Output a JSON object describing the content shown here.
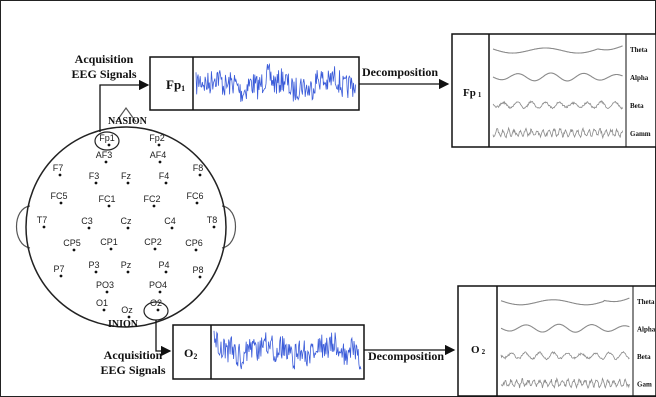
{
  "head": {
    "nasion": "NASION",
    "inion": "INION",
    "electrodes": [
      {
        "id": "fp1",
        "label": "Fp1"
      },
      {
        "id": "fp2",
        "label": "Fp2"
      },
      {
        "id": "af3",
        "label": "AF3"
      },
      {
        "id": "af4",
        "label": "AF4"
      },
      {
        "id": "f7",
        "label": "F7"
      },
      {
        "id": "f3",
        "label": "F3"
      },
      {
        "id": "fz",
        "label": "Fz"
      },
      {
        "id": "f4",
        "label": "F4"
      },
      {
        "id": "f8",
        "label": "F8"
      },
      {
        "id": "fc5",
        "label": "FC5"
      },
      {
        "id": "fc1",
        "label": "FC1"
      },
      {
        "id": "fc2",
        "label": "FC2"
      },
      {
        "id": "fc6",
        "label": "FC6"
      },
      {
        "id": "t7",
        "label": "T7"
      },
      {
        "id": "c3",
        "label": "C3"
      },
      {
        "id": "cz",
        "label": "Cz"
      },
      {
        "id": "c4",
        "label": "C4"
      },
      {
        "id": "t8",
        "label": "T8"
      },
      {
        "id": "cp5",
        "label": "CP5"
      },
      {
        "id": "cp1",
        "label": "CP1"
      },
      {
        "id": "cp2",
        "label": "CP2"
      },
      {
        "id": "cp6",
        "label": "CP6"
      },
      {
        "id": "p7",
        "label": "P7"
      },
      {
        "id": "p3",
        "label": "P3"
      },
      {
        "id": "pz",
        "label": "Pz"
      },
      {
        "id": "p4",
        "label": "P4"
      },
      {
        "id": "p8",
        "label": "P8"
      },
      {
        "id": "po3",
        "label": "PO3"
      },
      {
        "id": "po4",
        "label": "PO4"
      },
      {
        "id": "o1",
        "label": "O1"
      },
      {
        "id": "oz",
        "label": "Oz"
      },
      {
        "id": "o2",
        "label": "O2"
      }
    ]
  },
  "top": {
    "acquisition_line1": "Acquisition",
    "acquisition_line2": "EEG Signals",
    "signal_label": "Fp",
    "signal_sub": "1",
    "decomposition": "Decomposition",
    "result_label": "Fp",
    "result_sub": "1",
    "bands": [
      "Theta",
      "Alpha",
      "Beta",
      "Gamm"
    ]
  },
  "bottom": {
    "acquisition_line1": "Acquisition",
    "acquisition_line2": "EEG Signals",
    "signal_label": "O",
    "signal_sub": "2",
    "decomposition": "Decomposition",
    "result_label": "O",
    "result_sub": "2",
    "bands": [
      "Theta",
      "Alpha",
      "Beta",
      "Gam"
    ]
  },
  "colors": {
    "signal": "#3a5bd9",
    "band": "#8a8a8a",
    "outline": "#111111"
  }
}
